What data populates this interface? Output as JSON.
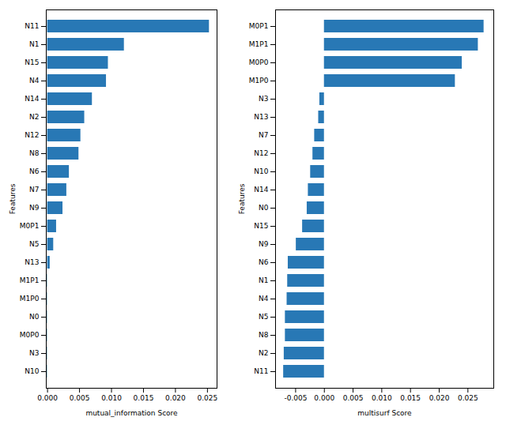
{
  "chart_data": [
    {
      "type": "bar",
      "orientation": "horizontal",
      "categories": [
        "N11",
        "N1",
        "N15",
        "N4",
        "N14",
        "N2",
        "N12",
        "N8",
        "N6",
        "N7",
        "N9",
        "M0P1",
        "N5",
        "N13",
        "M1P1",
        "M1P0",
        "N0",
        "M0P0",
        "N3",
        "N10"
      ],
      "values": [
        0.0253,
        0.012,
        0.0095,
        0.0092,
        0.007,
        0.0058,
        0.0052,
        0.0049,
        0.0034,
        0.003,
        0.0024,
        0.0014,
        0.00095,
        0.0004,
        5e-05,
        5e-05,
        5e-05,
        5e-05,
        5e-05,
        5e-05
      ],
      "color": "#2878b5",
      "x_label": "mutual_information Score",
      "y_label": "Features",
      "xlim": [
        -0.0002,
        0.0265
      ],
      "xticks": [
        {
          "value": 0,
          "label": "0.000"
        },
        0.005,
        {
          "value": 0.01,
          "label": "0.010"
        },
        0.015,
        {
          "value": 0.02,
          "label": "0.020"
        },
        0.025
      ]
    },
    {
      "type": "bar",
      "orientation": "horizontal",
      "categories": [
        "M0P1",
        "M1P1",
        "M0P0",
        "M1P0",
        "N3",
        "N13",
        "N7",
        "N12",
        "N10",
        "N14",
        "N0",
        "N15",
        "N9",
        "N6",
        "N1",
        "N4",
        "N5",
        "N8",
        "N2",
        "N11"
      ],
      "values": [
        0.0278,
        0.0268,
        0.024,
        0.0228,
        -0.0008,
        -0.001,
        -0.0017,
        -0.002,
        -0.0024,
        -0.0028,
        -0.003,
        -0.0038,
        -0.0049,
        -0.0063,
        -0.0064,
        -0.0065,
        -0.0068,
        -0.0068,
        -0.007,
        -0.0071
      ],
      "color": "#2878b5",
      "x_label": "multisurf Score",
      "y_label": "Features",
      "xlim": [
        -0.0085,
        0.0295
      ],
      "xticks": [
        -0.005,
        {
          "value": 0,
          "label": "0.000"
        },
        0.005,
        {
          "value": 0.01,
          "label": "0.010"
        },
        0.015,
        {
          "value": 0.02,
          "label": "0.020"
        },
        0.025
      ]
    }
  ]
}
